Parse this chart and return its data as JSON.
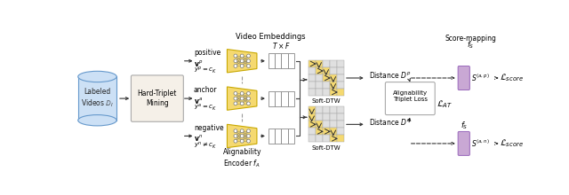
{
  "bg_color": "#ffffff",
  "database_label": "Labeled\nVideos $\\mathbb{D}_l$",
  "htmining_label": "Hard-Triplet\nMining",
  "positive_label": "positive",
  "anchor_label": "anchor",
  "negative_label": "negative",
  "vp_label": "$\\mathbf{v}^p$",
  "yp_label": "$y^p=c_K$",
  "va_label": "$\\mathbf{v}^a$",
  "ya_label": "$y^a=c_K$",
  "vn_label": "$\\mathbf{v}^n$",
  "yn_label": "$y^n\\neq c_K$",
  "encoder_label": "Alignability\nEncoder $f_A$",
  "video_emb_label": "Video Embeddings",
  "txf_label": "$T \\times F$",
  "soft_dtw_label": "Soft-DTW",
  "distance_p_label": "Distance $D^p$",
  "distance_n_label": "Distance $D^n$",
  "alignability_label": "Alignability\nTriplet Loss",
  "lat_label": "$\\mathcal{L}_{AT}$",
  "score_mapping_label": "Score-mapping",
  "fs_top_label": "$f_S$",
  "fs_label": "$f_S$",
  "sap_label": "$S^{(a,p)}$",
  "san_label": "$S^{(a,n)}$",
  "lscore_label": "$\\mathcal{L}_{score}$",
  "neural_color": "#f5d970",
  "neural_edge": "#c8a800",
  "dtw_bg": "#e0e0e0",
  "dtw_path": "#c8a800",
  "dtw_highlight": "#f5d970",
  "purple_color": "#c9a8d4",
  "purple_edge": "#9966bb",
  "db_color": "#cce0f5",
  "db_edge": "#6699cc",
  "box_color": "#f5f0e8",
  "box_edge": "#aaaaaa",
  "arrow_color": "#333333",
  "dashed_color": "#555555",
  "node_color": "#777777",
  "line_color": "#666666"
}
